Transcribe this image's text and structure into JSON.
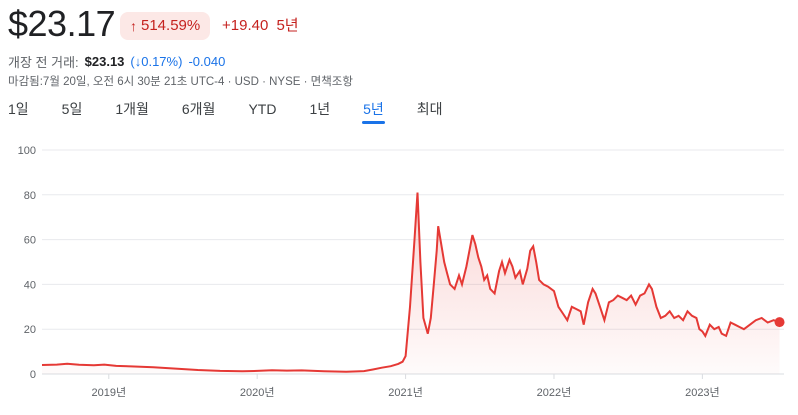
{
  "quote": {
    "price": "$23.17",
    "change_pct": "514.59%",
    "change_abs": "+19.40",
    "period": "5년",
    "premarket_label": "개장 전 거래:",
    "premarket_price": "$23.13",
    "premarket_pct": "(↓0.17%)",
    "premarket_abs": "-0.040",
    "meta": "마감됨:7월 20일, 오전 6시 30분 21초 UTC-4 · USD · NYSE · 면책조항"
  },
  "tabs": [
    "1일",
    "5일",
    "1개월",
    "6개월",
    "YTD",
    "1년",
    "5년",
    "최대"
  ],
  "active_tab": 6,
  "colors": {
    "line": "#e53935",
    "up": "#c5221f",
    "down": "#1a73e8",
    "grid": "#e8eaed"
  },
  "chart_data": {
    "type": "area",
    "ylim": [
      0,
      100
    ],
    "yticks": [
      0,
      20,
      40,
      60,
      80,
      100
    ],
    "xlim": [
      2018.55,
      2023.55
    ],
    "xticks": [
      {
        "label": "2019년",
        "x": 2019.0
      },
      {
        "label": "2020년",
        "x": 2020.0
      },
      {
        "label": "2021년",
        "x": 2021.0
      },
      {
        "label": "2022년",
        "x": 2022.0
      },
      {
        "label": "2023년",
        "x": 2023.0
      }
    ],
    "series": [
      {
        "values": [
          [
            2018.55,
            4
          ],
          [
            2018.65,
            4.2
          ],
          [
            2018.72,
            4.6
          ],
          [
            2018.8,
            4.1
          ],
          [
            2018.9,
            3.9
          ],
          [
            2018.97,
            4.2
          ],
          [
            2019.05,
            3.6
          ],
          [
            2019.15,
            3.4
          ],
          [
            2019.3,
            3.0
          ],
          [
            2019.45,
            2.4
          ],
          [
            2019.6,
            1.8
          ],
          [
            2019.75,
            1.4
          ],
          [
            2019.9,
            1.2
          ],
          [
            2020.0,
            1.4
          ],
          [
            2020.1,
            1.7
          ],
          [
            2020.2,
            1.5
          ],
          [
            2020.3,
            1.6
          ],
          [
            2020.45,
            1.2
          ],
          [
            2020.6,
            1.0
          ],
          [
            2020.72,
            1.3
          ],
          [
            2020.78,
            2.0
          ],
          [
            2020.84,
            2.8
          ],
          [
            2020.9,
            3.5
          ],
          [
            2020.95,
            4.5
          ],
          [
            2020.98,
            5.5
          ],
          [
            2021.0,
            8
          ],
          [
            2021.03,
            30
          ],
          [
            2021.06,
            60
          ],
          [
            2021.08,
            81
          ],
          [
            2021.1,
            50
          ],
          [
            2021.12,
            25
          ],
          [
            2021.15,
            18
          ],
          [
            2021.17,
            25
          ],
          [
            2021.19,
            40
          ],
          [
            2021.21,
            55
          ],
          [
            2021.22,
            66
          ],
          [
            2021.24,
            58
          ],
          [
            2021.26,
            50
          ],
          [
            2021.28,
            45
          ],
          [
            2021.3,
            40
          ],
          [
            2021.33,
            38
          ],
          [
            2021.36,
            44
          ],
          [
            2021.38,
            40
          ],
          [
            2021.41,
            48
          ],
          [
            2021.43,
            55
          ],
          [
            2021.45,
            62
          ],
          [
            2021.47,
            58
          ],
          [
            2021.49,
            52
          ],
          [
            2021.51,
            48
          ],
          [
            2021.53,
            42
          ],
          [
            2021.55,
            44
          ],
          [
            2021.57,
            38
          ],
          [
            2021.6,
            36
          ],
          [
            2021.63,
            46
          ],
          [
            2021.65,
            50
          ],
          [
            2021.67,
            45
          ],
          [
            2021.7,
            51
          ],
          [
            2021.72,
            48
          ],
          [
            2021.74,
            43
          ],
          [
            2021.77,
            46
          ],
          [
            2021.79,
            40
          ],
          [
            2021.82,
            47
          ],
          [
            2021.84,
            55
          ],
          [
            2021.86,
            57
          ],
          [
            2021.88,
            50
          ],
          [
            2021.9,
            42
          ],
          [
            2021.93,
            40
          ],
          [
            2021.96,
            39
          ],
          [
            2022.0,
            37
          ],
          [
            2022.03,
            30
          ],
          [
            2022.06,
            27
          ],
          [
            2022.09,
            24
          ],
          [
            2022.12,
            30
          ],
          [
            2022.15,
            29
          ],
          [
            2022.18,
            28
          ],
          [
            2022.2,
            22
          ],
          [
            2022.23,
            32
          ],
          [
            2022.26,
            38
          ],
          [
            2022.28,
            36
          ],
          [
            2022.31,
            30
          ],
          [
            2022.34,
            24
          ],
          [
            2022.37,
            32
          ],
          [
            2022.4,
            33
          ],
          [
            2022.43,
            35
          ],
          [
            2022.46,
            34
          ],
          [
            2022.49,
            33
          ],
          [
            2022.52,
            35
          ],
          [
            2022.55,
            31
          ],
          [
            2022.58,
            35
          ],
          [
            2022.61,
            36
          ],
          [
            2022.64,
            40
          ],
          [
            2022.66,
            38
          ],
          [
            2022.69,
            30
          ],
          [
            2022.72,
            25
          ],
          [
            2022.75,
            26
          ],
          [
            2022.78,
            28
          ],
          [
            2022.81,
            25
          ],
          [
            2022.84,
            26
          ],
          [
            2022.87,
            24
          ],
          [
            2022.9,
            28
          ],
          [
            2022.93,
            26
          ],
          [
            2022.96,
            25
          ],
          [
            2022.98,
            20
          ],
          [
            2023.0,
            19
          ],
          [
            2023.02,
            17
          ],
          [
            2023.05,
            22
          ],
          [
            2023.08,
            20
          ],
          [
            2023.11,
            21
          ],
          [
            2023.13,
            18
          ],
          [
            2023.16,
            17
          ],
          [
            2023.19,
            23
          ],
          [
            2023.22,
            22
          ],
          [
            2023.25,
            21
          ],
          [
            2023.28,
            20
          ],
          [
            2023.32,
            22
          ],
          [
            2023.36,
            24
          ],
          [
            2023.4,
            25
          ],
          [
            2023.44,
            23
          ],
          [
            2023.48,
            24
          ],
          [
            2023.52,
            23.17
          ]
        ]
      }
    ]
  }
}
